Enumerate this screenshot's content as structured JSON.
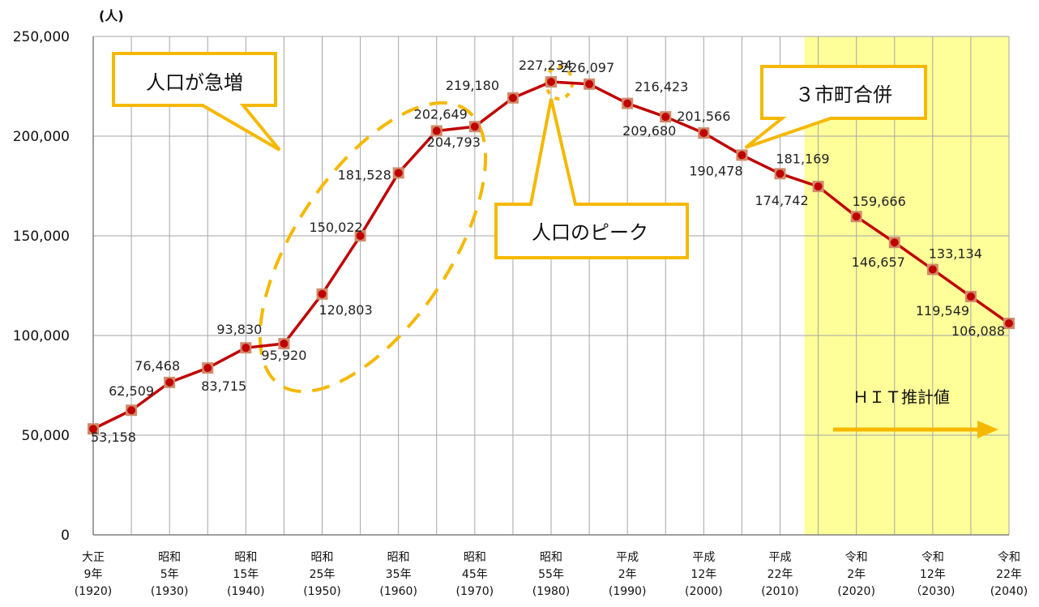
{
  "chart_data": {
    "type": "line",
    "unit_label": "(人)",
    "y_ticks": [
      "0",
      "50,000",
      "100,000",
      "150,000",
      "200,000",
      "250,000"
    ],
    "ylim": [
      0,
      250000
    ],
    "x": [
      1920,
      1925,
      1930,
      1935,
      1940,
      1945,
      1950,
      1955,
      1960,
      1965,
      1970,
      1975,
      1980,
      1985,
      1990,
      1995,
      2000,
      2005,
      2010,
      2015,
      2020,
      2025,
      2030,
      2035,
      2040
    ],
    "values": [
      53158,
      62509,
      76468,
      83715,
      93830,
      95920,
      120803,
      150022,
      181528,
      202649,
      204793,
      219180,
      227234,
      226097,
      216423,
      209680,
      201566,
      190478,
      181169,
      174742,
      159666,
      146657,
      133134,
      119549,
      106088
    ],
    "data_labels": [
      "53,158",
      "62,509",
      "76,468",
      "83,715",
      "93,830",
      "95,920",
      "120,803",
      "150,022",
      "181,528",
      "202,649",
      "204,793",
      "219,180",
      "227,234",
      "226,097",
      "216,423",
      "209,680",
      "201,566",
      "190,478",
      "181,169",
      "174,742",
      "159,666",
      "146,657",
      "133,134",
      "119,549",
      "106,088"
    ],
    "x_tick_labels": [
      {
        "year": 1920,
        "lines": [
          "大正",
          "9年",
          "(1920)"
        ]
      },
      {
        "year": 1930,
        "lines": [
          "昭和",
          "5年",
          "(1930)"
        ]
      },
      {
        "year": 1940,
        "lines": [
          "昭和",
          "15年",
          "(1940)"
        ]
      },
      {
        "year": 1950,
        "lines": [
          "昭和",
          "25年",
          "(1950)"
        ]
      },
      {
        "year": 1960,
        "lines": [
          "昭和",
          "35年",
          "(1960)"
        ]
      },
      {
        "year": 1970,
        "lines": [
          "昭和",
          "45年",
          "(1970)"
        ]
      },
      {
        "year": 1980,
        "lines": [
          "昭和",
          "55年",
          "(1980)"
        ]
      },
      {
        "year": 1990,
        "lines": [
          "平成",
          "2年",
          "(1990)"
        ]
      },
      {
        "year": 2000,
        "lines": [
          "平成",
          "12年",
          "(2000)"
        ]
      },
      {
        "year": 2010,
        "lines": [
          "平成",
          "22年",
          "(2010)"
        ]
      },
      {
        "year": 2020,
        "lines": [
          "令和",
          "2年",
          "(2020)"
        ]
      },
      {
        "year": 2030,
        "lines": [
          "令和",
          "12年",
          "（2030)"
        ]
      },
      {
        "year": 2040,
        "lines": [
          "令和",
          "22年",
          "(2040)"
        ]
      }
    ],
    "grid": true,
    "projection_start_year": 2015,
    "projection_label": "ＨＩＴ推計値",
    "annotations": [
      "人口が急増",
      "人口のピーク",
      "３市町合併"
    ],
    "colors": {
      "line": "#c00000",
      "marker_fill": "#c00000",
      "marker_border": "#d08a6a",
      "callout": "#f5b800",
      "projection_bg": "#ffff99",
      "grid": "#a6a6a6"
    }
  }
}
